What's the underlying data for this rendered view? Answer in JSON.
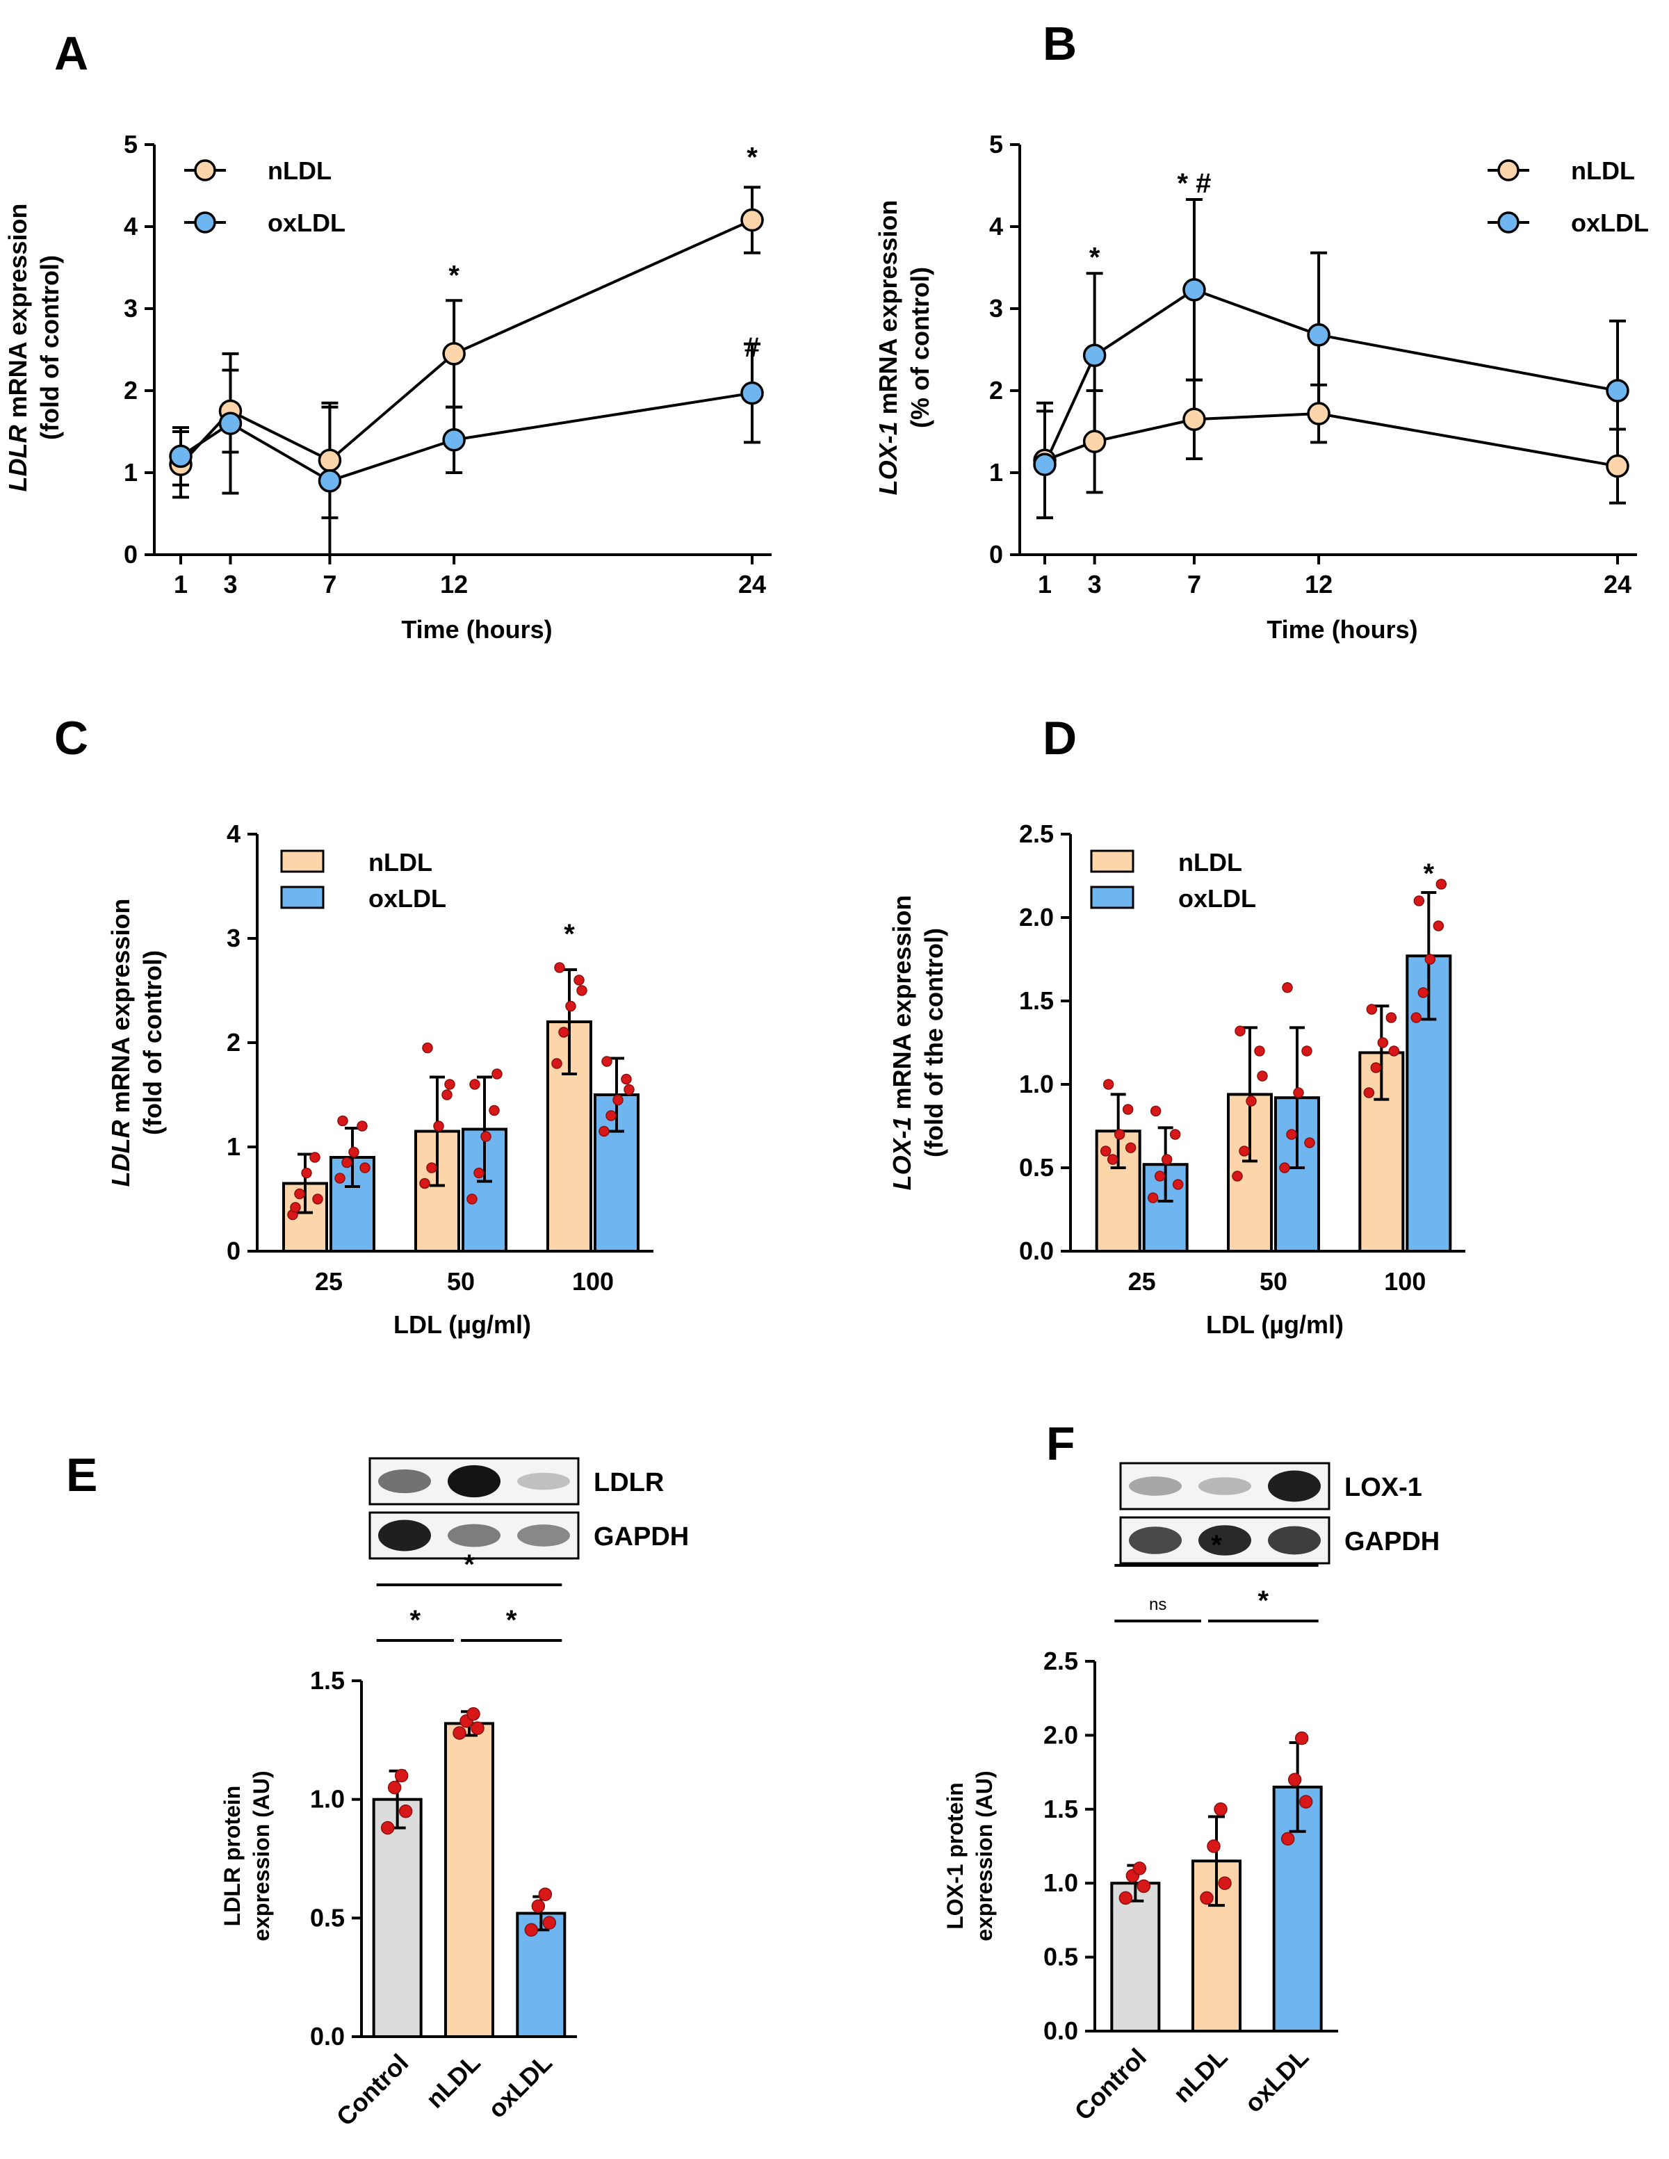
{
  "figure": {
    "colors": {
      "nLDL": "#fcd5ab",
      "oxLDL": "#6fb6f0",
      "control": "#dcdcdc",
      "dot": "#d81818",
      "axis": "#000000"
    }
  },
  "chart_data": [
    {
      "panel": "A",
      "type": "line",
      "ylabel_italic": "LDLR",
      "ylabel_rest": " mRNA expression",
      "ylabel2": "(fold of control)",
      "xlabel": "Time (hours)",
      "x": [
        1,
        3,
        7,
        12,
        24
      ],
      "xticks": [
        "1",
        "3",
        "7",
        "12",
        "24"
      ],
      "ylim": [
        0,
        5
      ],
      "yticks": [
        "0",
        "1",
        "2",
        "3",
        "4",
        "5"
      ],
      "legend_position": "top-left",
      "series": [
        {
          "name": "nLDL",
          "values": [
            1.1,
            1.75,
            1.15,
            2.45,
            4.08
          ],
          "err": [
            0.4,
            0.5,
            0.7,
            0.65,
            0.4
          ]
        },
        {
          "name": "oxLDL",
          "values": [
            1.2,
            1.6,
            0.9,
            1.4,
            1.97
          ],
          "err": [
            0.35,
            0.85,
            0.9,
            0.4,
            0.6
          ]
        }
      ],
      "annotations": [
        {
          "x": 12,
          "y": 3.48,
          "text": "*"
        },
        {
          "x": 24,
          "y": 4.92,
          "text": "*"
        },
        {
          "x": 24,
          "y": 2.6,
          "text": "#"
        }
      ]
    },
    {
      "panel": "B",
      "type": "line",
      "ylabel_italic": "LOX-1",
      "ylabel_rest": " mRNA expression",
      "ylabel2": "(% of control)",
      "xlabel": "Time (hours)",
      "x": [
        1,
        3,
        7,
        12,
        24
      ],
      "xticks": [
        "1",
        "3",
        "7",
        "12",
        "24"
      ],
      "ylim": [
        0,
        5
      ],
      "yticks": [
        "0",
        "1",
        "2",
        "3",
        "4",
        "5"
      ],
      "legend_position": "top-right",
      "series": [
        {
          "name": "nLDL",
          "values": [
            1.15,
            1.38,
            1.65,
            1.72,
            1.08
          ],
          "err": [
            0.7,
            0.62,
            0.48,
            0.35,
            0.45
          ]
        },
        {
          "name": "oxLDL",
          "values": [
            1.1,
            2.43,
            3.23,
            2.68,
            2.0
          ],
          "err": [
            0.65,
            1.0,
            1.1,
            1.0,
            0.85
          ]
        }
      ],
      "annotations": [
        {
          "x": 3,
          "y": 3.7,
          "text": "*"
        },
        {
          "x": 7,
          "y": 4.6,
          "text": "* #"
        }
      ]
    },
    {
      "panel": "C",
      "type": "bar",
      "ylabel_italic": "LDLR",
      "ylabel_rest": " mRNA expression",
      "ylabel2": "(fold of control)",
      "xlabel": "LDL (µg/ml)",
      "categories": [
        "25",
        "50",
        "100"
      ],
      "ylim": [
        0,
        4
      ],
      "yticks": [
        "0",
        "1",
        "2",
        "3",
        "4"
      ],
      "legend_position": "top-left",
      "series": [
        {
          "name": "nLDL",
          "values": [
            0.65,
            1.15,
            2.2
          ],
          "err": [
            0.28,
            0.52,
            0.5
          ],
          "points": [
            [
              0.35,
              0.55,
              0.75,
              0.9,
              0.42,
              0.5
            ],
            [
              0.65,
              0.8,
              1.2,
              1.5,
              1.95,
              1.6
            ],
            [
              1.8,
              2.1,
              2.35,
              2.6,
              2.72,
              2.5
            ]
          ]
        },
        {
          "name": "oxLDL",
          "values": [
            0.9,
            1.17,
            1.5
          ],
          "err": [
            0.28,
            0.5,
            0.35
          ],
          "points": [
            [
              0.7,
              0.85,
              0.95,
              1.2,
              1.25,
              0.8
            ],
            [
              0.5,
              0.75,
              1.1,
              1.35,
              1.6,
              1.7
            ],
            [
              1.15,
              1.3,
              1.45,
              1.65,
              1.82,
              1.55
            ]
          ]
        }
      ],
      "annotations": [
        {
          "category": "100",
          "series": "nLDL",
          "y": 3.1,
          "text": "*"
        }
      ]
    },
    {
      "panel": "D",
      "type": "bar",
      "ylabel_italic": "LOX-1",
      "ylabel_rest": " mRNA expression",
      "ylabel2": "(fold of the control)",
      "xlabel": "LDL (µg/ml)",
      "categories": [
        "25",
        "50",
        "100"
      ],
      "ylim": [
        0,
        2.5
      ],
      "yticks": [
        "0.0",
        "0.5",
        "1.0",
        "1.5",
        "2.0",
        "2.5"
      ],
      "legend_position": "top-left",
      "series": [
        {
          "name": "nLDL",
          "values": [
            0.72,
            0.94,
            1.19
          ],
          "err": [
            0.22,
            0.4,
            0.28
          ],
          "points": [
            [
              0.6,
              0.55,
              0.7,
              0.85,
              1.0,
              0.62
            ],
            [
              0.45,
              0.6,
              0.9,
              1.2,
              1.32,
              1.05
            ],
            [
              0.95,
              1.1,
              1.25,
              1.4,
              1.45,
              1.2
            ]
          ]
        },
        {
          "name": "oxLDL",
          "values": [
            0.52,
            0.92,
            1.77
          ],
          "err": [
            0.22,
            0.42,
            0.38
          ],
          "points": [
            [
              0.32,
              0.45,
              0.55,
              0.7,
              0.84,
              0.4
            ],
            [
              0.5,
              0.7,
              0.95,
              1.2,
              1.58,
              0.65
            ],
            [
              1.4,
              1.55,
              1.75,
              1.95,
              2.1,
              2.2
            ]
          ]
        }
      ],
      "annotations": [
        {
          "category": "100",
          "series": "oxLDL",
          "y": 2.3,
          "text": "*"
        }
      ]
    },
    {
      "panel": "E",
      "type": "bar",
      "blot": {
        "target": "LDLR",
        "loading": "GAPDH",
        "target_intensity": [
          0.55,
          1.0,
          0.18
        ],
        "loading_intensity": [
          0.95,
          0.5,
          0.45
        ]
      },
      "ylabel": "LDLR protein",
      "ylabel2": "expression (AU)",
      "categories": [
        "Control",
        "nLDL",
        "oxLDL"
      ],
      "ylim": [
        0,
        1.5
      ],
      "yticks": [
        "0.0",
        "0.5",
        "1.0",
        "1.5"
      ],
      "values": [
        1.0,
        1.32,
        0.52
      ],
      "err": [
        0.12,
        0.05,
        0.07
      ],
      "points": [
        [
          0.88,
          0.95,
          1.05,
          1.1
        ],
        [
          1.28,
          1.3,
          1.33,
          1.36
        ],
        [
          0.45,
          0.48,
          0.55,
          0.6
        ]
      ],
      "bar_colors": [
        "control",
        "nLDL",
        "oxLDL"
      ],
      "comparisons": [
        {
          "from": 0,
          "to": 1,
          "text": "*",
          "level": 1
        },
        {
          "from": 1,
          "to": 2,
          "text": "*",
          "level": 1
        },
        {
          "from": 0,
          "to": 2,
          "text": "*",
          "level": 2
        }
      ]
    },
    {
      "panel": "F",
      "type": "bar",
      "blot": {
        "target": "LOX-1",
        "loading": "GAPDH",
        "target_intensity": [
          0.3,
          0.22,
          0.95
        ],
        "loading_intensity": [
          0.75,
          0.9,
          0.8
        ]
      },
      "ylabel": "LOX-1 protein",
      "ylabel2": "expression (AU)",
      "categories": [
        "Control",
        "nLDL",
        "oxLDL"
      ],
      "ylim": [
        0,
        2.5
      ],
      "yticks": [
        "0.0",
        "0.5",
        "1.0",
        "1.5",
        "2.0",
        "2.5"
      ],
      "values": [
        1.0,
        1.15,
        1.65
      ],
      "err": [
        0.12,
        0.3,
        0.3
      ],
      "points": [
        [
          0.9,
          0.98,
          1.05,
          1.1
        ],
        [
          0.9,
          1.0,
          1.25,
          1.5
        ],
        [
          1.3,
          1.55,
          1.7,
          1.98
        ]
      ],
      "bar_colors": [
        "control",
        "nLDL",
        "oxLDL"
      ],
      "comparisons": [
        {
          "from": 0,
          "to": 1,
          "text": "ns",
          "level": 1
        },
        {
          "from": 1,
          "to": 2,
          "text": "*",
          "level": 1
        },
        {
          "from": 0,
          "to": 2,
          "text": "*",
          "level": 2
        }
      ]
    }
  ]
}
